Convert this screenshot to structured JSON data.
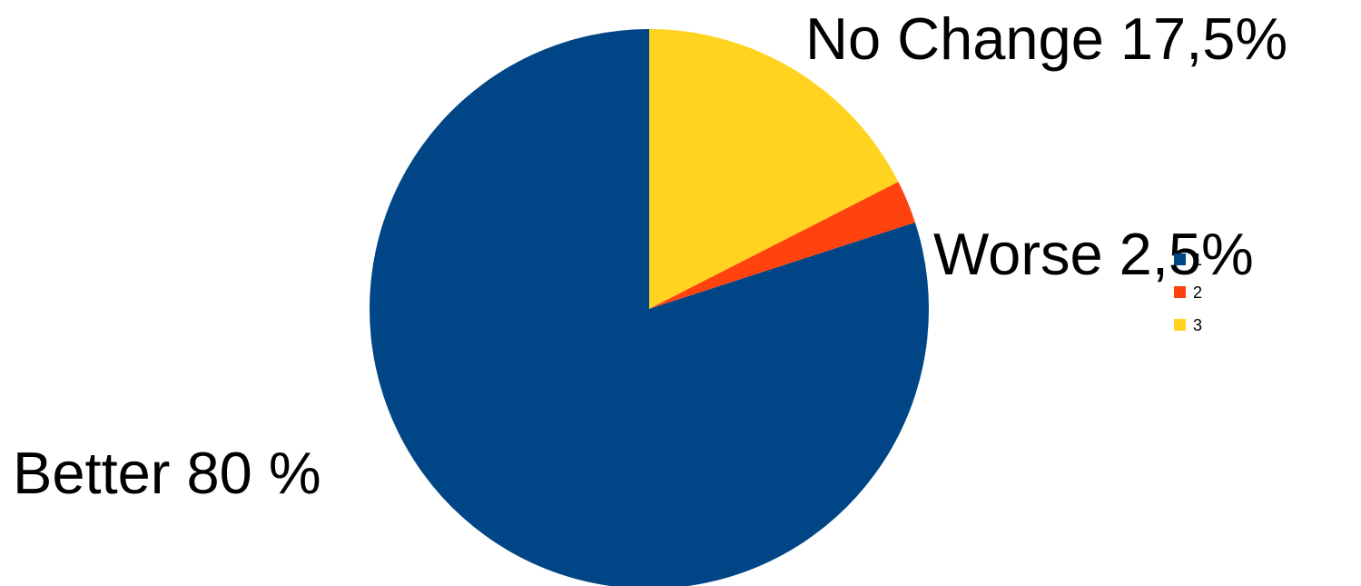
{
  "chart_data": {
    "type": "pie",
    "categories": [
      "1",
      "2",
      "3"
    ],
    "values": [
      80,
      2.5,
      17.5
    ],
    "colors": [
      "#004586",
      "#FF420E",
      "#FFD320"
    ],
    "data_labels": [
      "Better 80 %",
      "Worse 2,5%",
      "No Change 17,5%"
    ],
    "legend": {
      "placement": "right",
      "entries": [
        "1",
        "2",
        "3"
      ]
    },
    "start": "12 o'clock, clockwise (series 3, then 2, then 1)"
  }
}
